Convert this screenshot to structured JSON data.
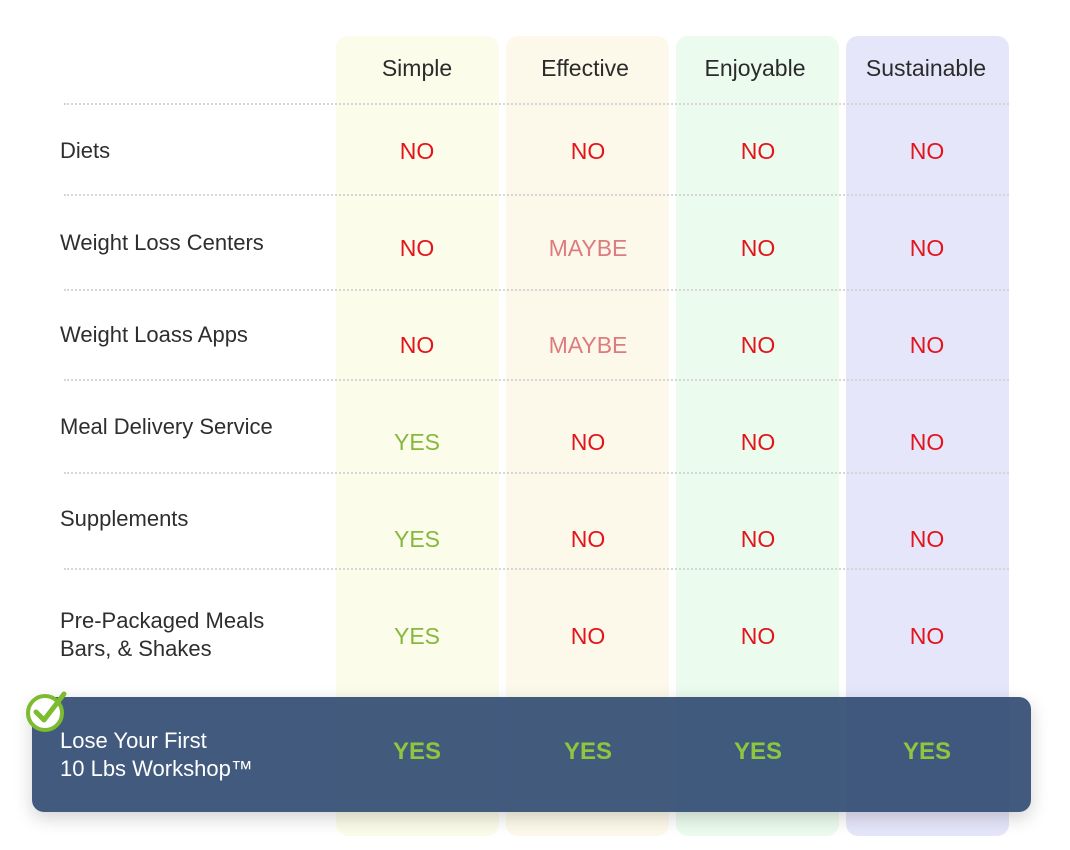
{
  "columns": [
    "Simple",
    "Effective",
    "Enjoyable",
    "Sustainable"
  ],
  "rows": [
    {
      "label_line1": "Diets",
      "label_line2": "",
      "values": [
        "NO",
        "NO",
        "NO",
        "NO"
      ]
    },
    {
      "label_line1": "Weight Loss Centers",
      "label_line2": "",
      "values": [
        "NO",
        "MAYBE",
        "NO",
        "NO"
      ]
    },
    {
      "label_line1": "Weight Loass Apps",
      "label_line2": "",
      "values": [
        "NO",
        "MAYBE",
        "NO",
        "NO"
      ]
    },
    {
      "label_line1": "Meal Delivery Service",
      "label_line2": "",
      "values": [
        "YES",
        "NO",
        "NO",
        "NO"
      ]
    },
    {
      "label_line1": "Supplements",
      "label_line2": "",
      "values": [
        "YES",
        "NO",
        "NO",
        "NO"
      ]
    },
    {
      "label_line1": "Pre-Packaged Meals",
      "label_line2": "Bars, & Shakes",
      "values": [
        "YES",
        "NO",
        "NO",
        "NO"
      ]
    }
  ],
  "highlight": {
    "label_line1": "Lose Your First",
    "label_line2": "10 Lbs Workshop™",
    "values": [
      "YES",
      "YES",
      "YES",
      "YES"
    ]
  },
  "colors": {
    "no": "#e3141c",
    "maybe": "#de7b7e",
    "yes": "#86b83f",
    "highlight_bg": "#2e4870",
    "check": "#7dbb2f"
  },
  "icons": {
    "highlight_marker": "checkmark-circle-icon"
  }
}
